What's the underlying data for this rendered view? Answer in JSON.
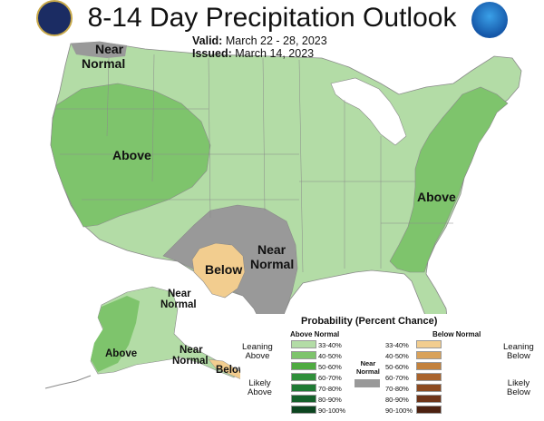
{
  "header": {
    "title": "8-14 Day Precipitation Outlook",
    "valid_label": "Valid:",
    "valid_dates": "March 22 - 28, 2023",
    "issued_label": "Issued:",
    "issued_date": "March 14, 2023"
  },
  "logos": {
    "left": "doc-seal-logo",
    "right": "noaa-logo"
  },
  "map_labels": {
    "nw_near": "Near",
    "nw_normal": "Normal",
    "west_above": "Above",
    "east_above": "Above",
    "tx_near": "Near",
    "tx_normal": "Normal",
    "tx_below": "Below",
    "ak_near_line1": "Near",
    "ak_near_line2": "Normal",
    "ak_above": "Above",
    "ak_near2_line1": "Near",
    "ak_near2_line2": "Normal",
    "ak_below": "Below"
  },
  "colors": {
    "above_33_40": "#b3dca6",
    "above_40_50": "#7ec46c",
    "above_50_60": "#4fab41",
    "near_normal": "#999999",
    "below_33_40": "#f2cd8f",
    "below_40_50": "#d9a25a"
  },
  "legend": {
    "title": "Probability (Percent Chance)",
    "above_header": "Above Normal",
    "below_header": "Below Normal",
    "near_line1": "Near",
    "near_line2": "Normal",
    "leaning_above_1": "Leaning",
    "leaning_above_2": "Above",
    "likely_above_1": "Likely",
    "likely_above_2": "Above",
    "leaning_below_1": "Leaning",
    "leaning_below_2": "Below",
    "likely_below_1": "Likely",
    "likely_below_2": "Below",
    "above_bins": [
      {
        "label": "33-40%",
        "color": "#b3dca6"
      },
      {
        "label": "40-50%",
        "color": "#7ec46c"
      },
      {
        "label": "50-60%",
        "color": "#4fab41"
      },
      {
        "label": "60-70%",
        "color": "#2f8f3a"
      },
      {
        "label": "70-80%",
        "color": "#1f7a34"
      },
      {
        "label": "80-90%",
        "color": "#15612b"
      },
      {
        "label": "90-100%",
        "color": "#0c4520"
      }
    ],
    "below_bins": [
      {
        "label": "33-40%",
        "color": "#f2cd8f"
      },
      {
        "label": "40-50%",
        "color": "#d9a25a"
      },
      {
        "label": "50-60%",
        "color": "#c3813c"
      },
      {
        "label": "60-70%",
        "color": "#a9632c"
      },
      {
        "label": "70-80%",
        "color": "#8c4a20"
      },
      {
        "label": "80-90%",
        "color": "#6e3418"
      },
      {
        "label": "90-100%",
        "color": "#4c2110"
      }
    ]
  }
}
